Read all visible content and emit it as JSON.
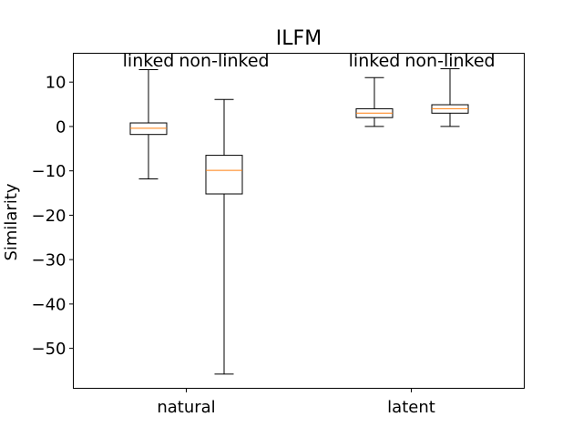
{
  "chart_data": {
    "type": "boxplot",
    "title": "ILFM",
    "ylabel": "Similarity",
    "xlabel": "",
    "ylim": [
      -59,
      16.5
    ],
    "yticks": [
      10,
      0,
      -10,
      -20,
      -30,
      -40,
      -50
    ],
    "ytick_labels": [
      "10",
      "0",
      "−10",
      "−20",
      "−30",
      "−40",
      "−50"
    ],
    "categories": [
      "natural",
      "latent"
    ],
    "grid": false,
    "colors": {
      "box": "#000000",
      "median": "#ff7f0e"
    },
    "boxes": [
      {
        "group": "natural",
        "label": "linked",
        "whisker_low": -11.8,
        "q1": -1.8,
        "median": -0.4,
        "q3": 0.8,
        "whisker_high": 12.8
      },
      {
        "group": "natural",
        "label": "non-linked",
        "whisker_low": -55.8,
        "q1": -15.2,
        "median": -9.9,
        "q3": -6.5,
        "whisker_high": 6.1
      },
      {
        "group": "latent",
        "label": "linked",
        "whisker_low": 0.0,
        "q1": 2.0,
        "median": 3.0,
        "q3": 4.0,
        "whisker_high": 11.0
      },
      {
        "group": "latent",
        "label": "non-linked",
        "whisker_low": 0.0,
        "q1": 3.0,
        "median": 4.0,
        "q3": 4.9,
        "whisker_high": 13.0
      }
    ]
  }
}
